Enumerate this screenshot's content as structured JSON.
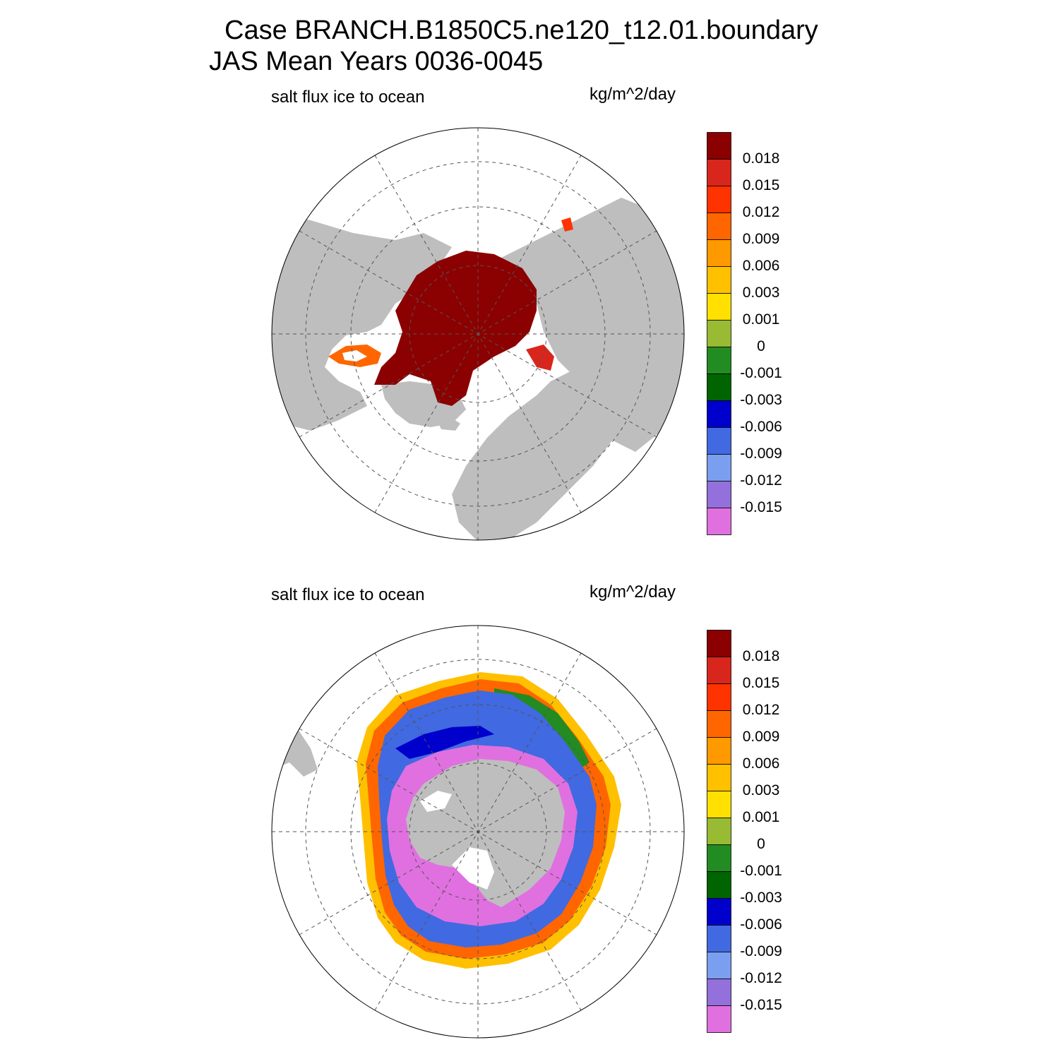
{
  "title": {
    "line1": "Case BRANCH.B1850C5.ne120_t12.01.boundary",
    "line2": "JAS Mean    Years 0036-0045"
  },
  "panels": [
    {
      "left_label": "salt flux ice to ocean",
      "units": "kg/m^2/day",
      "hemisphere": "north"
    },
    {
      "left_label": "salt flux ice to ocean",
      "units": "kg/m^2/day",
      "hemisphere": "south"
    }
  ],
  "colorbar": {
    "labels": [
      "0.018",
      "0.015",
      "0.012",
      "0.009",
      "0.006",
      "0.003",
      "0.001",
      "0",
      "-0.001",
      "-0.003",
      "-0.006",
      "-0.009",
      "-0.012",
      "-0.015"
    ],
    "colors": [
      "#8b0000",
      "#d9261c",
      "#ff3300",
      "#ff6600",
      "#ff9900",
      "#ffc000",
      "#ffe000",
      "#99bb33",
      "#228b22",
      "#006400",
      "#0000cd",
      "#4169e1",
      "#7b9ff0",
      "#9370db",
      "#e070e0"
    ]
  },
  "colors": {
    "land": "#bebebe",
    "ocean": "#ffffff"
  }
}
